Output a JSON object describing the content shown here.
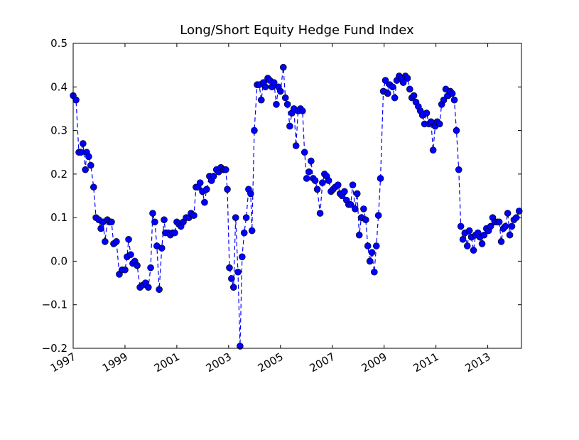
{
  "chart_data": {
    "type": "line",
    "title": "Long/Short Equity Hedge Fund Index",
    "color": "#0000ff",
    "linestyle": "dashed",
    "marker": "circle",
    "x": [
      1997.0,
      1997.11,
      1997.22,
      1997.3,
      1997.38,
      1997.47,
      1997.52,
      1997.6,
      1997.68,
      1997.79,
      1997.88,
      1997.99,
      1998.07,
      1998.15,
      1998.23,
      1998.32,
      1998.4,
      1998.48,
      1998.56,
      1998.67,
      1998.78,
      1998.89,
      1999.0,
      1999.08,
      1999.14,
      1999.22,
      1999.3,
      1999.38,
      1999.47,
      1999.58,
      1999.68,
      1999.79,
      1999.9,
      1999.99,
      2000.07,
      2000.15,
      2000.23,
      2000.32,
      2000.42,
      2000.51,
      2000.56,
      2000.67,
      2000.75,
      2000.84,
      2000.92,
      2001.0,
      2001.08,
      2001.16,
      2001.25,
      2001.36,
      2001.47,
      2001.55,
      2001.66,
      2001.74,
      2001.82,
      2001.9,
      2001.99,
      2002.07,
      2002.15,
      2002.26,
      2002.34,
      2002.42,
      2002.53,
      2002.62,
      2002.7,
      2002.81,
      2002.89,
      2002.95,
      2003.03,
      2003.11,
      2003.19,
      2003.27,
      2003.36,
      2003.44,
      2003.52,
      2003.6,
      2003.68,
      2003.77,
      2003.85,
      2003.9,
      2003.99,
      2004.1,
      2004.18,
      2004.26,
      2004.34,
      2004.42,
      2004.51,
      2004.59,
      2004.67,
      2004.75,
      2004.84,
      2004.92,
      2005.0,
      2005.11,
      2005.19,
      2005.27,
      2005.36,
      2005.44,
      2005.52,
      2005.6,
      2005.68,
      2005.77,
      2005.85,
      2005.93,
      2006.01,
      2006.1,
      2006.18,
      2006.26,
      2006.34,
      2006.42,
      2006.53,
      2006.62,
      2006.7,
      2006.78,
      2006.86,
      2006.95,
      2007.03,
      2007.11,
      2007.22,
      2007.3,
      2007.38,
      2007.47,
      2007.55,
      2007.63,
      2007.71,
      2007.79,
      2007.88,
      2007.96,
      2008.04,
      2008.12,
      2008.21,
      2008.29,
      2008.37,
      2008.45,
      2008.53,
      2008.62,
      2008.7,
      2008.78,
      2008.86,
      2008.97,
      2009.05,
      2009.14,
      2009.22,
      2009.33,
      2009.41,
      2009.49,
      2009.58,
      2009.66,
      2009.74,
      2009.82,
      2009.9,
      2009.99,
      2010.07,
      2010.15,
      2010.23,
      2010.32,
      2010.4,
      2010.48,
      2010.56,
      2010.64,
      2010.73,
      2010.81,
      2010.89,
      2010.97,
      2011.05,
      2011.14,
      2011.22,
      2011.3,
      2011.38,
      2011.47,
      2011.55,
      2011.63,
      2011.71,
      2011.79,
      2011.88,
      2011.96,
      2012.04,
      2012.12,
      2012.21,
      2012.29,
      2012.37,
      2012.45,
      2012.53,
      2012.62,
      2012.7,
      2012.78,
      2012.86,
      2012.95,
      2013.03,
      2013.11,
      2013.19,
      2013.27,
      2013.36,
      2013.44,
      2013.52,
      2013.6,
      2013.68,
      2013.77,
      2013.85,
      2013.93,
      2014.01,
      2014.1,
      2014.21
    ],
    "values": [
      0.38,
      0.37,
      0.25,
      0.25,
      0.27,
      0.21,
      0.25,
      0.24,
      0.22,
      0.17,
      0.1,
      0.095,
      0.075,
      0.09,
      0.045,
      0.095,
      0.09,
      0.09,
      0.04,
      0.045,
      -0.03,
      -0.02,
      -0.02,
      0.01,
      0.05,
      0.015,
      -0.005,
      0.0,
      -0.01,
      -0.06,
      -0.055,
      -0.05,
      -0.06,
      -0.015,
      0.11,
      0.09,
      0.035,
      -0.065,
      0.03,
      0.095,
      0.065,
      0.065,
      0.06,
      0.065,
      0.065,
      0.09,
      0.085,
      0.08,
      0.09,
      0.1,
      0.1,
      0.11,
      0.105,
      0.17,
      0.17,
      0.18,
      0.16,
      0.135,
      0.165,
      0.195,
      0.185,
      0.195,
      0.21,
      0.205,
      0.215,
      0.21,
      0.21,
      0.165,
      -0.015,
      -0.04,
      -0.06,
      0.1,
      -0.025,
      -0.195,
      0.01,
      0.065,
      0.1,
      0.165,
      0.155,
      0.07,
      0.3,
      0.405,
      0.405,
      0.37,
      0.41,
      0.4,
      0.42,
      0.415,
      0.4,
      0.41,
      0.36,
      0.4,
      0.39,
      0.445,
      0.375,
      0.36,
      0.31,
      0.34,
      0.35,
      0.265,
      0.345,
      0.35,
      0.345,
      0.25,
      0.19,
      0.205,
      0.23,
      0.19,
      0.185,
      0.165,
      0.11,
      0.18,
      0.2,
      0.195,
      0.185,
      0.16,
      0.165,
      0.17,
      0.175,
      0.155,
      0.15,
      0.16,
      0.14,
      0.13,
      0.13,
      0.175,
      0.12,
      0.155,
      0.06,
      0.1,
      0.12,
      0.095,
      0.035,
      0.0,
      0.02,
      -0.025,
      0.035,
      0.105,
      0.19,
      0.39,
      0.415,
      0.385,
      0.405,
      0.4,
      0.375,
      0.415,
      0.425,
      0.42,
      0.41,
      0.425,
      0.42,
      0.395,
      0.375,
      0.38,
      0.365,
      0.355,
      0.345,
      0.335,
      0.315,
      0.34,
      0.315,
      0.32,
      0.255,
      0.31,
      0.32,
      0.315,
      0.36,
      0.37,
      0.395,
      0.38,
      0.39,
      0.385,
      0.37,
      0.3,
      0.21,
      0.08,
      0.05,
      0.065,
      0.035,
      0.07,
      0.055,
      0.025,
      0.06,
      0.065,
      0.055,
      0.04,
      0.06,
      0.075,
      0.07,
      0.08,
      0.1,
      0.09,
      0.09,
      0.09,
      0.045,
      0.075,
      0.08,
      0.11,
      0.06,
      0.08,
      0.095,
      0.1,
      0.115
    ],
    "xlim": [
      1997,
      2014.3
    ],
    "xticks": [
      1997,
      1999,
      2001,
      2003,
      2005,
      2007,
      2009,
      2011,
      2013
    ],
    "ylim": [
      -0.2,
      0.5
    ],
    "yticks": [
      {
        "value": -0.2,
        "label": "−0.2"
      },
      {
        "value": -0.1,
        "label": "−0.1"
      },
      {
        "value": 0,
        "label": "0.0"
      },
      0.1,
      0.2,
      0.3,
      0.4,
      0.5
    ]
  }
}
